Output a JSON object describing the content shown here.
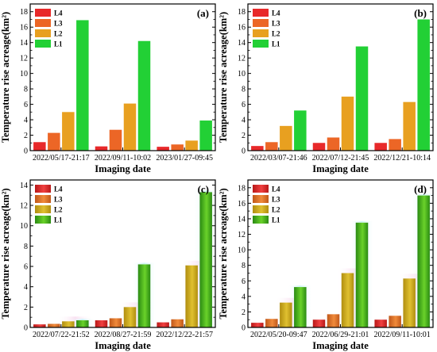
{
  "figure": {
    "legend_labels": [
      "L4",
      "L3",
      "L2",
      "L1"
    ],
    "colors_flat": [
      "#e8292a",
      "#ec6626",
      "#e8a020",
      "#22d035"
    ],
    "colors_shaded": [
      "#d92020",
      "#d96a1c",
      "#c9a418",
      "#4cb41a"
    ],
    "glow_color": "#c8f4f4"
  },
  "chart_data": [
    {
      "panel": "(a)",
      "type": "bar",
      "style": "flat",
      "xlabel": "Imaging date",
      "ylabel": "Temperature rise acreage(km²)",
      "ylim": [
        0,
        19
      ],
      "yticks": [
        0,
        2,
        4,
        6,
        8,
        10,
        12,
        14,
        16,
        18
      ],
      "categories": [
        "2022/05/17-21:17",
        "2022/09/11-10:02",
        "2023/01/27-09:45"
      ],
      "series": [
        {
          "name": "L4",
          "values": [
            1.1,
            0.55,
            0.5
          ]
        },
        {
          "name": "L3",
          "values": [
            2.3,
            2.7,
            0.8
          ]
        },
        {
          "name": "L2",
          "values": [
            5.0,
            6.1,
            1.3
          ]
        },
        {
          "name": "L1",
          "values": [
            16.9,
            14.2,
            3.9
          ]
        }
      ],
      "legend_position": "top-left"
    },
    {
      "panel": "(b)",
      "type": "bar",
      "style": "flat",
      "xlabel": "Imaging date",
      "ylabel": "Temperature rise acreage(km²)",
      "ylim": [
        0,
        19
      ],
      "yticks": [
        0,
        2,
        4,
        6,
        8,
        10,
        12,
        14,
        16,
        18
      ],
      "categories": [
        "2022/03/07-21:46",
        "2022/07/12-21:45",
        "2022/12/21-10:14"
      ],
      "series": [
        {
          "name": "L4",
          "values": [
            0.6,
            1.0,
            1.0
          ]
        },
        {
          "name": "L3",
          "values": [
            1.1,
            1.7,
            1.5
          ]
        },
        {
          "name": "L2",
          "values": [
            3.2,
            7.0,
            6.3
          ]
        },
        {
          "name": "L1",
          "values": [
            5.2,
            13.5,
            17.0
          ]
        }
      ],
      "legend_position": "top-left"
    },
    {
      "panel": "(c)",
      "type": "bar",
      "style": "shaded",
      "xlabel": "Imaging date",
      "ylabel": "Temperature rise acreage(km²)",
      "ylim": [
        0,
        14.5
      ],
      "yticks": [
        0,
        2,
        4,
        6,
        8,
        10,
        12,
        14
      ],
      "categories": [
        "2022/07/22-21:52",
        "2022/08/27-21:59",
        "2022/12/22-21:57"
      ],
      "series": [
        {
          "name": "L4",
          "values": [
            0.3,
            0.7,
            0.5
          ]
        },
        {
          "name": "L3",
          "values": [
            0.35,
            0.9,
            0.8
          ]
        },
        {
          "name": "L2",
          "values": [
            0.6,
            2.0,
            6.1
          ]
        },
        {
          "name": "L1",
          "values": [
            0.7,
            6.2,
            13.3
          ]
        }
      ],
      "legend_position": "top-left"
    },
    {
      "panel": "(d)",
      "type": "bar",
      "style": "shaded",
      "xlabel": "Imaging date",
      "ylabel": "Temperature rise acreage(km²)",
      "ylim": [
        0,
        19
      ],
      "yticks": [
        0,
        2,
        4,
        6,
        8,
        10,
        12,
        14,
        16,
        18
      ],
      "categories": [
        "2022/05/20-09:47",
        "2022/06/29-21:01",
        "2022/09/11-10:01"
      ],
      "series": [
        {
          "name": "L4",
          "values": [
            0.6,
            1.0,
            1.0
          ]
        },
        {
          "name": "L3",
          "values": [
            1.1,
            1.7,
            1.5
          ]
        },
        {
          "name": "L2",
          "values": [
            3.2,
            7.0,
            6.3
          ]
        },
        {
          "name": "L1",
          "values": [
            5.2,
            13.5,
            17.0
          ]
        }
      ],
      "legend_position": "top-left"
    }
  ]
}
